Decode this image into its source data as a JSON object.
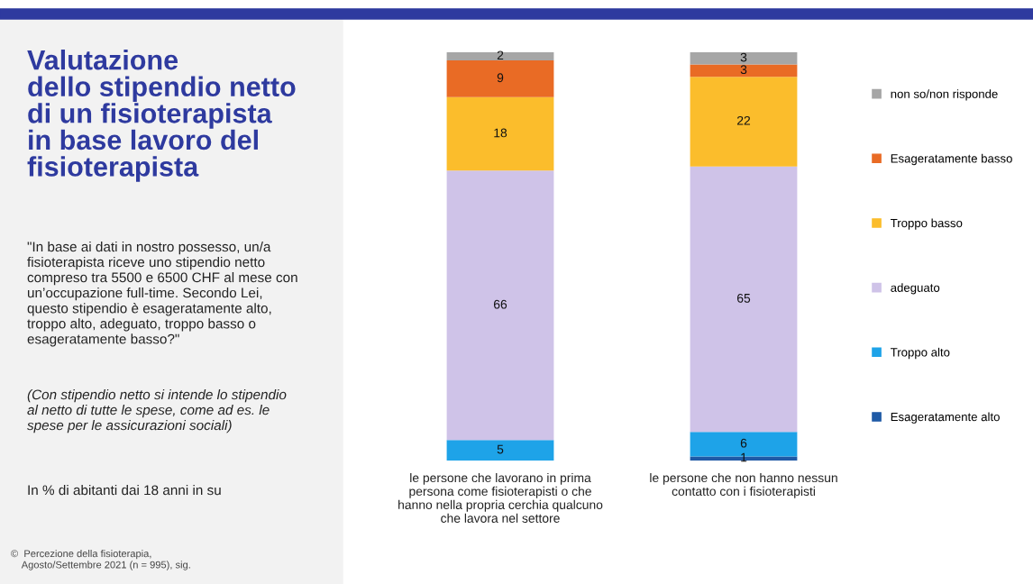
{
  "chart_data": {
    "type": "bar",
    "stacked": true,
    "title": "Valutazione\ndello stipendio netto\ndi un fisioterapista\nin base lavoro del\nfisioterapista",
    "annotations": [
      "\"In base ai dati in nostro possesso, un/a\nfisioterapista riceve uno stipendio netto\ncompreso tra 5500 e 6500 CHF al mese con\nun’occupazione full-time. Secondo Lei,\nquesto stipendio è esageratamente alto,\ntroppo alto, adeguato, troppo basso o\nesageratamente basso?\"",
      "(Con stipendio netto si intende lo stipendio\nal netto di tutte le spese, come ad es. le\nspese per le assicurazioni sociali)",
      "In % di abitanti dai 18 anni in su",
      "©  Percezione della fisioterapia,\n    Agosto/Settembre 2021 (n = 995), sig."
    ],
    "categories": [
      "le persone che lavorano in prima\npersona come fisioterapisti o che\nhanno nella propria cerchia qualcuno\nche lavora nel settore",
      "le persone che non hanno nessun\ncontatto con i fisioterapisti"
    ],
    "series": [
      {
        "name": "Esageratamente alto",
        "color": "#1f5aa6",
        "values": [
          0,
          1
        ],
        "value_labels": [
          null,
          "1"
        ]
      },
      {
        "name": "Troppo alto",
        "color": "#1ea3e8",
        "values": [
          5,
          6
        ],
        "value_labels": [
          "5",
          "6"
        ]
      },
      {
        "name": "adeguato",
        "color": "#cfc3e8",
        "values": [
          66,
          65
        ],
        "value_labels": [
          "66",
          "65"
        ]
      },
      {
        "name": "Troppo basso",
        "color": "#fbbd2c",
        "values": [
          18,
          22
        ],
        "value_labels": [
          "18",
          "22"
        ]
      },
      {
        "name": "Esageratamente basso",
        "color": "#e96b25",
        "values": [
          9,
          3
        ],
        "value_labels": [
          "9",
          "3"
        ]
      },
      {
        "name": "non so/non risponde",
        "color": "#a6a6a6",
        "values": [
          2,
          3
        ],
        "value_labels": [
          "2",
          "3"
        ]
      }
    ],
    "legend": "right",
    "grid": false
  }
}
